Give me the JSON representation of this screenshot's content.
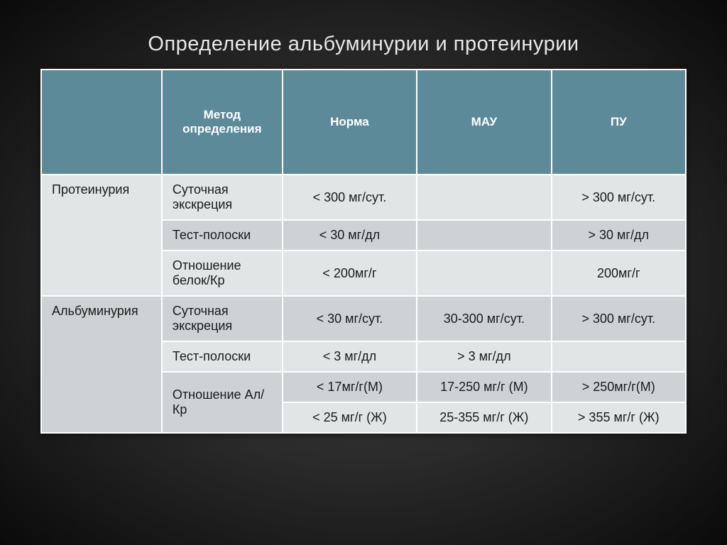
{
  "title": "Определение альбуминурии и протеинурии",
  "table": {
    "header_bg": "#5d8a99",
    "row_alt_bg_light": "#e1e5e6",
    "row_alt_bg_dark": "#cdd3d4",
    "columns": [
      "",
      "Метод определения",
      "Норма",
      "МАУ",
      "ПУ"
    ],
    "col_widths": [
      "170px",
      "170px",
      "190px",
      "190px",
      "190px"
    ],
    "groups": [
      {
        "label": "Протеинурия",
        "rows": [
          {
            "method": "Суточная экскреция",
            "norm": "< 300 мг/сут.",
            "mau": "",
            "pu": "> 300 мг/сут."
          },
          {
            "method": "Тест-полоски",
            "norm": "< 30 мг/дл",
            "mau": "",
            "pu": "> 30 мг/дл"
          },
          {
            "method": "Отношение белок/Кр",
            "norm": "< 200мг/г",
            "mau": "",
            "pu": "200мг/г"
          }
        ]
      },
      {
        "label": "Альбуминурия",
        "rows": [
          {
            "method": "Суточная экскреция",
            "norm": "< 30 мг/сут.",
            "mau": "30-300 мг/сут.",
            "pu": "> 300 мг/сут."
          },
          {
            "method": "Тест-полоски",
            "norm": "< 3 мг/дл",
            "mau": "> 3 мг/дл",
            "pu": ""
          },
          {
            "method": "Отношение Ал/Кр",
            "sub": [
              {
                "norm": "< 17мг/г(М)",
                "mau": "17-250 мг/г (М)",
                "pu": "> 250мг/г(М)"
              },
              {
                "norm": "< 25 мг/г (Ж)",
                "mau": "25-355 мг/г (Ж)",
                "pu": "> 355 мг/г (Ж)"
              }
            ]
          }
        ]
      }
    ]
  }
}
